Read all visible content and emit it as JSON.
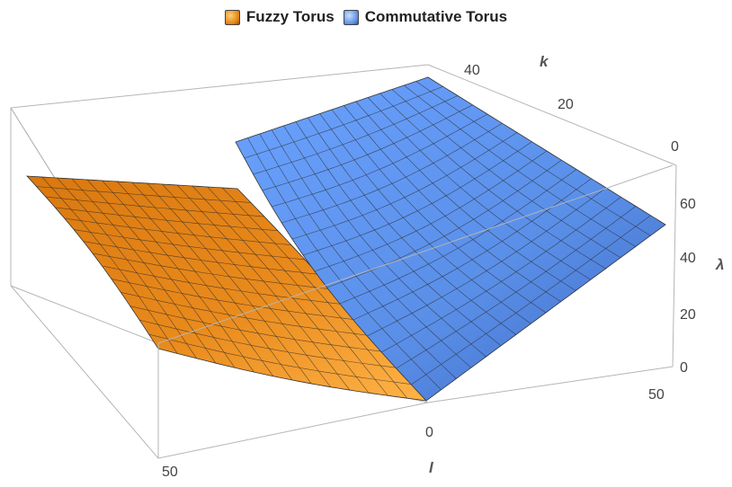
{
  "chart_data": {
    "type": "surface3d",
    "series": [
      {
        "name": "Fuzzy Torus",
        "color": "#f08c1a"
      },
      {
        "name": "Commutative Torus",
        "color": "#5b8de6"
      }
    ],
    "axes": {
      "l": {
        "label": "l",
        "range": [
          0,
          50
        ],
        "ticks": [
          "0",
          "50"
        ]
      },
      "k": {
        "label": "k",
        "range": [
          0,
          50
        ],
        "ticks": [
          "0",
          "20",
          "40"
        ]
      },
      "lambda": {
        "label": "λ",
        "range": [
          0,
          70
        ],
        "ticks": [
          "0",
          "20",
          "40",
          "60"
        ]
      }
    },
    "box": true,
    "legend": "top-center"
  }
}
